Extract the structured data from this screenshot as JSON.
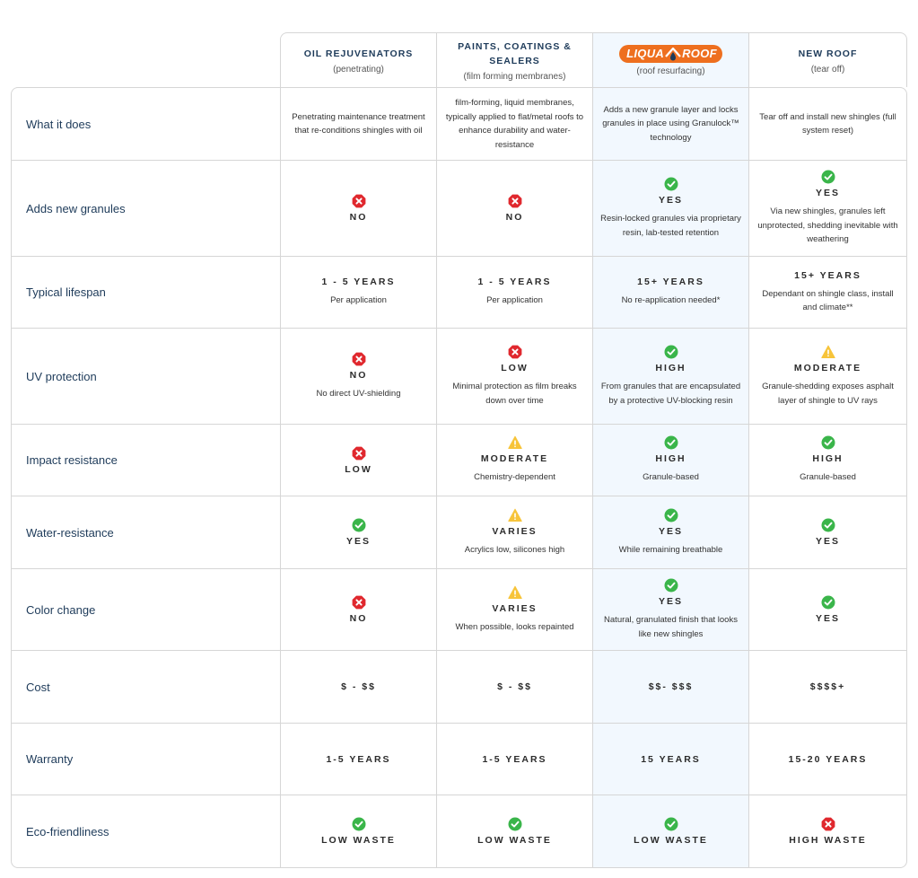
{
  "columns": [
    {
      "title": "OIL REJUVENATORS",
      "subtitle": "(penetrating)"
    },
    {
      "title": "PAINTS, COATINGS & SEALERS",
      "subtitle": "(film forming membranes)"
    },
    {
      "brand_left": "LIQUA",
      "brand_right": "ROOF",
      "subtitle": "(roof resurfacing)"
    },
    {
      "title": "NEW ROOF",
      "subtitle": "(tear off)"
    }
  ],
  "colors": {
    "brand": "#ee6f1f",
    "highlight": "#f2f8fe",
    "check": "#3ab54a",
    "cross": "#e0282e",
    "warn": "#f7c43a",
    "label": "#1e3b5a"
  },
  "rows": [
    {
      "label": "What it does",
      "cells": [
        {
          "desc": "Penetrating maintenance treatment that re-conditions shingles with oil"
        },
        {
          "desc": "film-forming, liquid membranes, typically applied to flat/metal roofs to enhance durability and water-resistance"
        },
        {
          "desc": "Adds a new granule layer and locks granules in place using Granulock™ technology"
        },
        {
          "desc": "Tear off and install new shingles (full system reset)"
        }
      ]
    },
    {
      "label": "Adds new granules",
      "cells": [
        {
          "icon": "cross-icon",
          "status": "NO"
        },
        {
          "icon": "cross-icon",
          "status": "NO"
        },
        {
          "icon": "check-icon",
          "status": "YES",
          "desc": "Resin-locked granules via proprietary resin, lab-tested retention"
        },
        {
          "icon": "check-icon",
          "status": "YES",
          "desc": "Via new shingles, granules left unprotected, shedding inevitable with weathering"
        }
      ]
    },
    {
      "label": "Typical lifespan",
      "cells": [
        {
          "status": "1 - 5 YEARS",
          "desc": "Per application"
        },
        {
          "status": "1 - 5 YEARS",
          "desc": "Per application"
        },
        {
          "status": "15+ YEARS",
          "desc": "No re-application needed*"
        },
        {
          "status": "15+ YEARS",
          "desc": "Dependant on shingle class, install and climate**"
        }
      ]
    },
    {
      "label": "UV protection",
      "cells": [
        {
          "icon": "cross-icon",
          "status": "NO",
          "desc": "No direct UV-shielding"
        },
        {
          "icon": "cross-icon",
          "status": "LOW",
          "desc": "Minimal protection as film breaks down over time"
        },
        {
          "icon": "check-icon",
          "status": "HIGH",
          "desc": "From granules that are encapsulated by a protective UV-blocking resin"
        },
        {
          "icon": "warning-icon",
          "status": "MODERATE",
          "desc": "Granule-shedding exposes asphalt layer of shingle to UV rays"
        }
      ]
    },
    {
      "label": "Impact resistance",
      "cells": [
        {
          "icon": "cross-icon",
          "status": "LOW"
        },
        {
          "icon": "warning-icon",
          "status": "MODERATE",
          "desc": "Chemistry-dependent"
        },
        {
          "icon": "check-icon",
          "status": "HIGH",
          "desc": "Granule-based"
        },
        {
          "icon": "check-icon",
          "status": "HIGH",
          "desc": "Granule-based"
        }
      ]
    },
    {
      "label": "Water-resistance",
      "cells": [
        {
          "icon": "check-icon",
          "status": "YES"
        },
        {
          "icon": "warning-icon",
          "status": "VARIES",
          "desc": "Acrylics low, silicones high"
        },
        {
          "icon": "check-icon",
          "status": "YES",
          "desc": "While remaining breathable"
        },
        {
          "icon": "check-icon",
          "status": "YES"
        }
      ]
    },
    {
      "label": "Color change",
      "cells": [
        {
          "icon": "cross-icon",
          "status": "NO"
        },
        {
          "icon": "warning-icon",
          "status": "VARIES",
          "desc": "When possible, looks repainted"
        },
        {
          "icon": "check-icon",
          "status": "YES",
          "desc": "Natural, granulated finish that looks like new shingles"
        },
        {
          "icon": "check-icon",
          "status": "YES"
        }
      ]
    },
    {
      "label": "Cost",
      "cells": [
        {
          "status": "$ - $$"
        },
        {
          "status": "$ - $$"
        },
        {
          "status": "$$- $$$"
        },
        {
          "status": "$$$$+"
        }
      ]
    },
    {
      "label": "Warranty",
      "cells": [
        {
          "status": "1-5 YEARS"
        },
        {
          "status": "1-5 YEARS"
        },
        {
          "status": "15 YEARS"
        },
        {
          "status": "15-20 YEARS"
        }
      ]
    },
    {
      "label": "Eco-friendliness",
      "cells": [
        {
          "icon": "check-icon",
          "status": "LOW WASTE"
        },
        {
          "icon": "check-icon",
          "status": "LOW WASTE"
        },
        {
          "icon": "check-icon",
          "status": "LOW WASTE"
        },
        {
          "icon": "cross-icon",
          "status": "HIGH WASTE"
        }
      ]
    }
  ]
}
